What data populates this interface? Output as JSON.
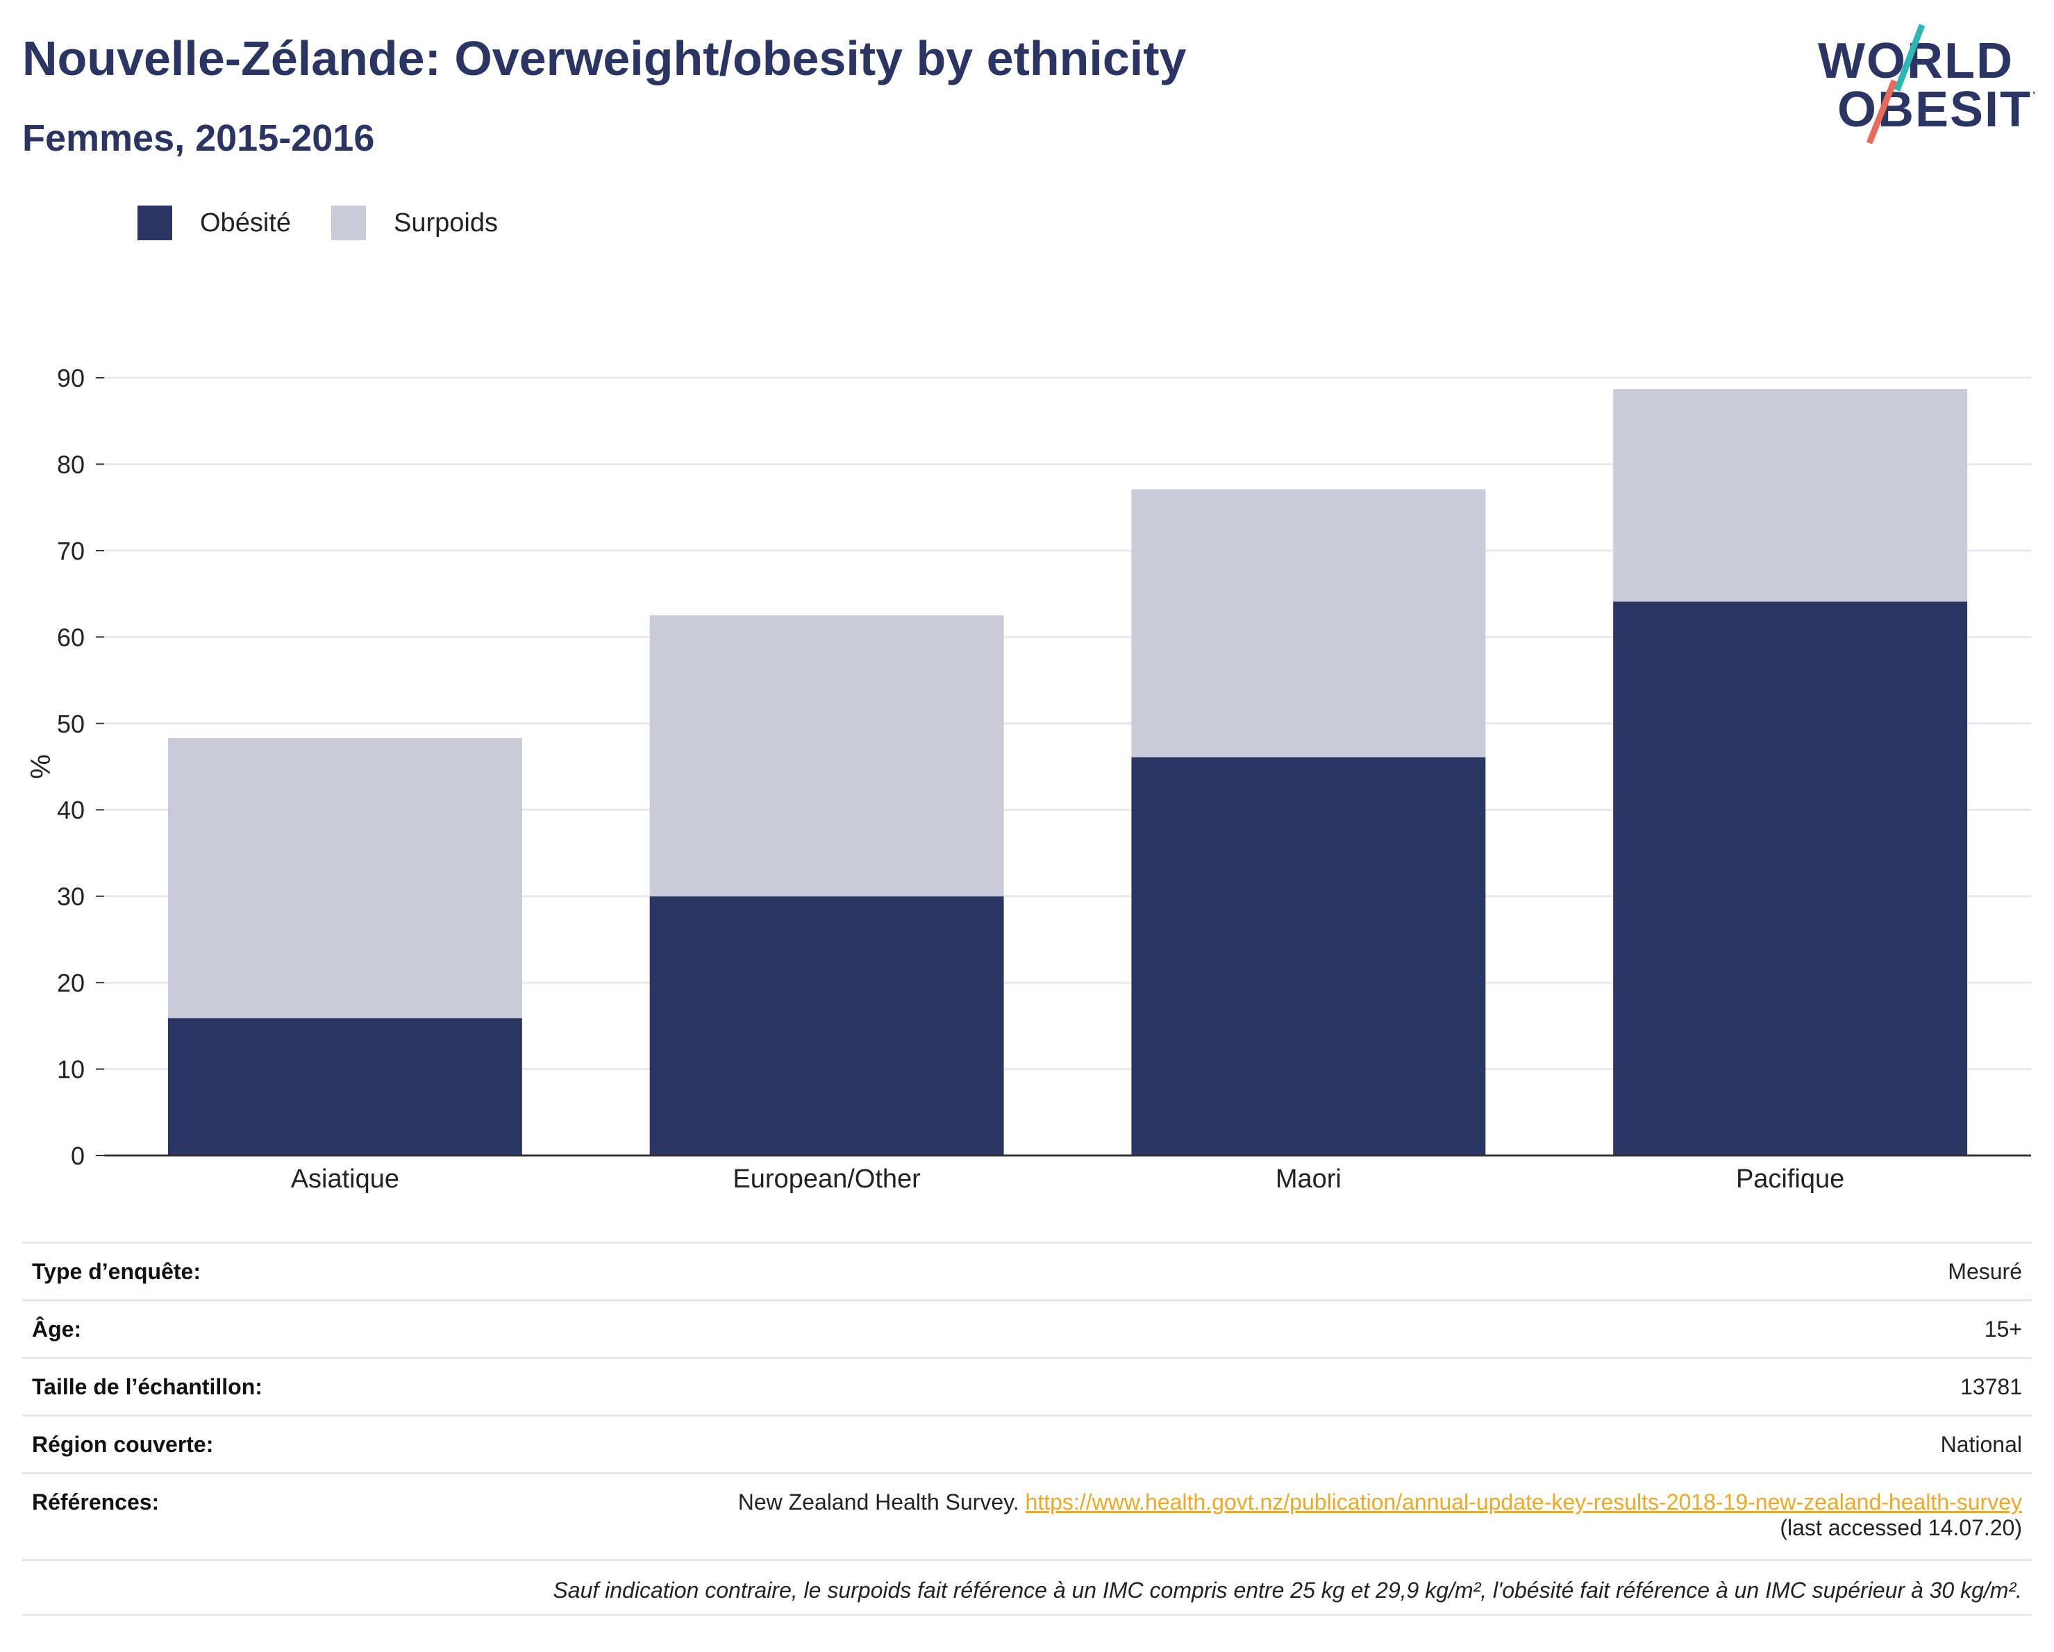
{
  "header": {
    "title": "Nouvelle-Zélande: Overweight/obesity by ethnicity",
    "subtitle": "Femmes, 2015-2016"
  },
  "logo": {
    "line1": "WORLD",
    "line2": "OBESITY"
  },
  "legend": [
    {
      "name": "Obésité",
      "color": "#2a3563"
    },
    {
      "name": "Surpoids",
      "color": "#c9cbd8"
    }
  ],
  "chart_data": {
    "type": "bar",
    "stacked": true,
    "categories": [
      "Asiatique",
      "European/Other",
      "Maori",
      "Pacifique"
    ],
    "series": [
      {
        "name": "Obésité",
        "color": "#2a3563",
        "values": [
          15.9,
          30.0,
          46.1,
          64.1
        ]
      },
      {
        "name": "Surpoids",
        "color": "#c9cbd8",
        "values": [
          32.4,
          32.5,
          31.0,
          24.6
        ]
      }
    ],
    "totals": [
      48.3,
      62.5,
      77.1,
      88.7
    ],
    "ylabel": "%",
    "ylim": [
      0,
      90
    ],
    "yticks": [
      0,
      10,
      20,
      30,
      40,
      50,
      60,
      70,
      80,
      90
    ],
    "grid": true,
    "legend_position": "top-left"
  },
  "meta": {
    "survey_type_label": "Type d’enquête:",
    "survey_type_value": "Mesuré",
    "age_label": "Âge:",
    "age_value": "15+",
    "sample_size_label": "Taille de l’échantillon:",
    "sample_size_value": "13781",
    "region_label": "Région couverte:",
    "region_value": "National",
    "references_label": "Références:",
    "references_text": "New Zealand Health Survey.",
    "references_link": "https://www.health.govt.nz/publication/annual-update-key-results-2018-19-new-zealand-health-survey",
    "references_accessed": "(last accessed 14.07.20)",
    "note": "Sauf indication contraire, le surpoids fait référence à un IMC compris entre 25 kg et 29,9 kg/m², l'obésité fait référence à un IMC supérieur à 30 kg/m²."
  }
}
